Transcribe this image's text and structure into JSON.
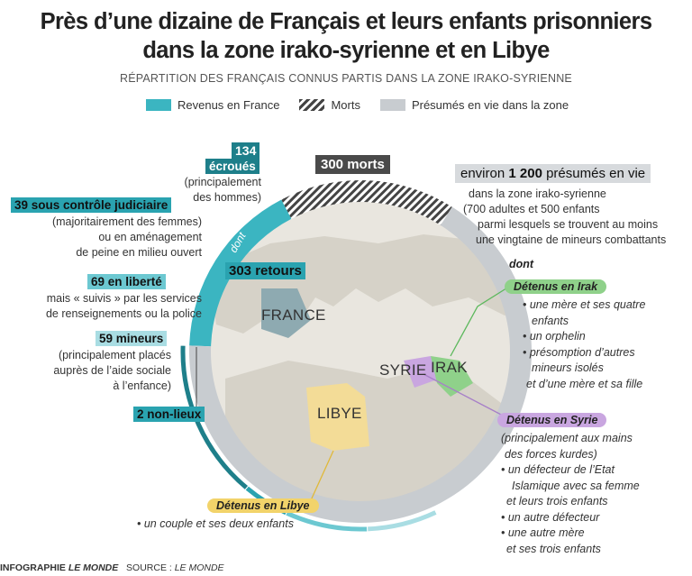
{
  "title": {
    "line1": "Près d’une dizaine de Français et leurs enfants prisonniers",
    "line2": "dans la zone irako-syrienne et en Libye"
  },
  "subtitle": "RÉPARTITION DES FRANÇAIS CONNUS PARTIS DANS LA ZONE IRAKO-SYRIENNE",
  "legend": {
    "returned": "Revenus en France",
    "dead": "Morts",
    "alive": "Présumés en vie dans la zone"
  },
  "colors": {
    "teal": "#3bb5c1",
    "teal_dark": "#1e7f8a",
    "grey_ring": "#c8ccd0",
    "irak": "#8fd18a",
    "syrie": "#c9a6e0",
    "libye": "#f2d36a"
  },
  "left": {
    "ecroues_num": "134",
    "ecroues_label": "écroués",
    "ecroues_note": [
      "(principalement",
      "des hommes)"
    ],
    "judiciaire": "39 sous contrôle judiciaire",
    "judiciaire_note": [
      "(majoritairement des femmes)",
      "ou en aménagement",
      "de peine en milieu ouvert"
    ],
    "liberte": "69 en liberté",
    "liberte_note": [
      "mais « suivis » par les services",
      "de renseignements ou la police"
    ],
    "mineurs": "59 mineurs",
    "mineurs_note": [
      "(principalement placés",
      "auprès de l’aide sociale",
      "à l’enfance)"
    ],
    "non_lieux": "2 non-lieux",
    "dont": "dont"
  },
  "center": {
    "morts": "300 morts",
    "retours": "303 retours",
    "france": "FRANCE",
    "syrie": "SYRIE",
    "irak": "IRAK",
    "libye": "LIBYE"
  },
  "right": {
    "vivants_pre": "environ ",
    "vivants_num": "1 200",
    "vivants_post": " présumés en vie",
    "vivants_note": [
      "dans la zone irako-syrienne",
      "(700 adultes et 500 enfants",
      "parmi lesquels se trouvent au moins",
      "une vingtaine de mineurs combattants"
    ],
    "dont": "dont"
  },
  "detenus": {
    "irak_label": "Détenus en Irak",
    "irak_items": [
      "• une mère et ses quatre",
      "enfants",
      "• un orphelin",
      "• présomption d’autres",
      "mineurs isolés",
      "et d’une mère et sa fille"
    ],
    "syrie_label": "Détenus en Syrie",
    "syrie_items": [
      "(principalement aux mains",
      "des forces kurdes)",
      "• un défecteur de l’Etat",
      "Islamique  avec sa femme",
      "et leurs trois enfants",
      "• un autre défecteur",
      "• une autre mère",
      "et ses trois enfants"
    ],
    "libye_label": "Détenus en Libye",
    "libye_items": [
      "• un couple et ses deux enfants"
    ]
  },
  "chart_data": {
    "type": "pie",
    "categories": [
      "Revenus en France",
      "Morts",
      "Présumés en vie dans la zone"
    ],
    "values": [
      303,
      300,
      1200
    ],
    "breakdown": {
      "returned": [
        {
          "name": "écroués",
          "value": 134
        },
        {
          "name": "sous contrôle judiciaire",
          "value": 39
        },
        {
          "name": "en liberté",
          "value": 69
        },
        {
          "name": "mineurs",
          "value": 59
        },
        {
          "name": "non-lieux",
          "value": 2
        }
      ]
    }
  },
  "footer": {
    "credit_pre": "INFOGRAPHIE ",
    "credit_brand": "LE MONDE",
    "source_pre": "SOURCE : ",
    "source_brand": "LE MONDE"
  }
}
